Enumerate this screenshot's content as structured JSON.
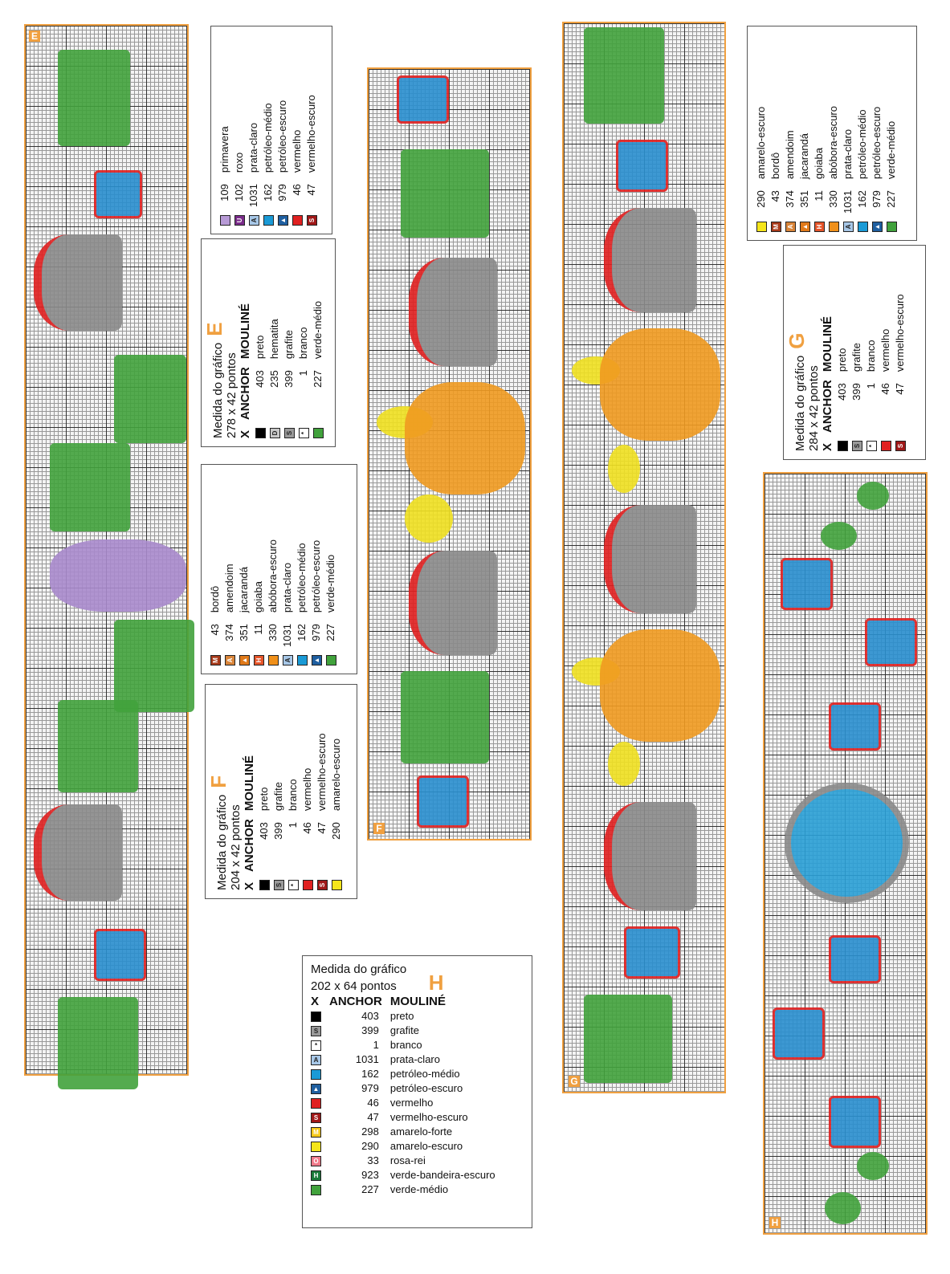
{
  "charts": {
    "E": {
      "label": "E"
    },
    "F": {
      "label": "F"
    },
    "G": {
      "label": "G"
    },
    "H": {
      "label": "H"
    }
  },
  "colors": {
    "preto": "#000000",
    "grafite": "#9a9a9a",
    "branco": "#ffffff",
    "hematita": "#c8c8c8",
    "verde_medio": "#41a23c",
    "primavera": "#b79ad6",
    "roxo": "#7a2c8a",
    "prata_claro": "#a7c7e7",
    "petroleo_medio": "#1a9ad6",
    "petroleo_escuro": "#1f5fa0",
    "vermelho": "#e02020",
    "vermelho_escuro": "#a01818",
    "amarelo_escuro": "#f5e51a",
    "amarelo_forte": "#f5c81a",
    "bordo": "#a83a1a",
    "amendoim": "#d9853a",
    "jacaranda": "#e07a1a",
    "goiaba": "#e6552a",
    "abobora_escuro": "#f0901a",
    "rosa_rei": "#f07a8a",
    "verde_bandeira_escuro": "#1a7a3a"
  },
  "legends": {
    "E_main": {
      "title1": "Medida do gráfico",
      "letter": "E",
      "title2": "278 x 42 pontos",
      "head": [
        "X",
        "ANCHOR",
        "MOULINÉ"
      ],
      "rows": [
        {
          "sym": "",
          "color": "#000000",
          "num": "403",
          "name": "preto"
        },
        {
          "sym": "D",
          "color": "#c8c8c8",
          "num": "235",
          "name": "hematita"
        },
        {
          "sym": "S",
          "color": "#9a9a9a",
          "num": "399",
          "name": "grafite"
        },
        {
          "sym": "*",
          "color": "#ffffff",
          "num": "1",
          "name": "branco"
        },
        {
          "sym": "",
          "color": "#41a23c",
          "num": "227",
          "name": "verde-médio"
        }
      ]
    },
    "E_extra": {
      "rows": [
        {
          "sym": "",
          "color": "#b79ad6",
          "num": "109",
          "name": "primavera"
        },
        {
          "sym": "U",
          "color": "#7a2c8a",
          "num": "102",
          "name": "roxo"
        },
        {
          "sym": "A",
          "color": "#a7c7e7",
          "num": "1031",
          "name": "prata-claro"
        },
        {
          "sym": "",
          "color": "#1a9ad6",
          "num": "162",
          "name": "petróleo-médio"
        },
        {
          "sym": "▲",
          "color": "#1f5fa0",
          "num": "979",
          "name": "petróleo-escuro"
        },
        {
          "sym": "",
          "color": "#e02020",
          "num": "46",
          "name": "vermelho"
        },
        {
          "sym": "S",
          "color": "#a01818",
          "num": "47",
          "name": "vermelho-escuro"
        }
      ]
    },
    "F_extra": {
      "rows": [
        {
          "sym": "M",
          "color": "#a83a1a",
          "num": "43",
          "name": "bordô"
        },
        {
          "sym": "A",
          "color": "#d9853a",
          "num": "374",
          "name": "amendoim"
        },
        {
          "sym": "▲",
          "color": "#e07a1a",
          "num": "351",
          "name": "jacarandá"
        },
        {
          "sym": "H",
          "color": "#e6552a",
          "num": "11",
          "name": "goiaba"
        },
        {
          "sym": "",
          "color": "#f0901a",
          "num": "330",
          "name": "abóbora-escuro"
        },
        {
          "sym": "A",
          "color": "#a7c7e7",
          "num": "1031",
          "name": "prata-claro"
        },
        {
          "sym": "",
          "color": "#1a9ad6",
          "num": "162",
          "name": "petróleo-médio"
        },
        {
          "sym": "▲",
          "color": "#1f5fa0",
          "num": "979",
          "name": "petróleo-escuro"
        },
        {
          "sym": "",
          "color": "#41a23c",
          "num": "227",
          "name": "verde-médio"
        }
      ]
    },
    "F_main": {
      "title1": "Medida do gráfico",
      "letter": "F",
      "title2": "204 x 42 pontos",
      "head": [
        "X",
        "ANCHOR",
        "MOULINÉ"
      ],
      "rows": [
        {
          "sym": "",
          "color": "#000000",
          "num": "403",
          "name": "preto"
        },
        {
          "sym": "S",
          "color": "#9a9a9a",
          "num": "399",
          "name": "grafite"
        },
        {
          "sym": "*",
          "color": "#ffffff",
          "num": "1",
          "name": "branco"
        },
        {
          "sym": "",
          "color": "#e02020",
          "num": "46",
          "name": "vermelho"
        },
        {
          "sym": "S",
          "color": "#a01818",
          "num": "47",
          "name": "vermelho-escuro"
        },
        {
          "sym": "",
          "color": "#f5e51a",
          "num": "290",
          "name": "amarelo-escuro"
        }
      ]
    },
    "G_extra": {
      "rows": [
        {
          "sym": "",
          "color": "#f5e51a",
          "num": "290",
          "name": "amarelo-escuro"
        },
        {
          "sym": "M",
          "color": "#a83a1a",
          "num": "43",
          "name": "bordô"
        },
        {
          "sym": "A",
          "color": "#d9853a",
          "num": "374",
          "name": "amendoim"
        },
        {
          "sym": "▲",
          "color": "#e07a1a",
          "num": "351",
          "name": "jacarandá"
        },
        {
          "sym": "H",
          "color": "#e6552a",
          "num": "11",
          "name": "goiaba"
        },
        {
          "sym": "",
          "color": "#f0901a",
          "num": "330",
          "name": "abóbora-escuro"
        },
        {
          "sym": "A",
          "color": "#a7c7e7",
          "num": "1031",
          "name": "prata-claro"
        },
        {
          "sym": "",
          "color": "#1a9ad6",
          "num": "162",
          "name": "petróleo-médio"
        },
        {
          "sym": "▲",
          "color": "#1f5fa0",
          "num": "979",
          "name": "petróleo-escuro"
        },
        {
          "sym": "",
          "color": "#41a23c",
          "num": "227",
          "name": "verde-médio"
        }
      ]
    },
    "G_main": {
      "title1": "Medida do gráfico",
      "letter": "G",
      "title2": "284 x 42 pontos",
      "head": [
        "X",
        "ANCHOR",
        "MOULINÉ"
      ],
      "rows": [
        {
          "sym": "",
          "color": "#000000",
          "num": "403",
          "name": "preto"
        },
        {
          "sym": "S",
          "color": "#9a9a9a",
          "num": "399",
          "name": "grafite"
        },
        {
          "sym": "*",
          "color": "#ffffff",
          "num": "1",
          "name": "branco"
        },
        {
          "sym": "",
          "color": "#e02020",
          "num": "46",
          "name": "vermelho"
        },
        {
          "sym": "S",
          "color": "#a01818",
          "num": "47",
          "name": "vermelho-escuro"
        }
      ]
    },
    "H_main": {
      "title1": "Medida do gráfico",
      "letter": "H",
      "title2": "202 x 64 pontos",
      "head": [
        "X",
        "ANCHOR",
        "MOULINÉ"
      ],
      "rows": [
        {
          "sym": "",
          "color": "#000000",
          "num": "403",
          "name": "preto"
        },
        {
          "sym": "S",
          "color": "#9a9a9a",
          "num": "399",
          "name": "grafite"
        },
        {
          "sym": "*",
          "color": "#ffffff",
          "num": "1",
          "name": "branco"
        },
        {
          "sym": "A",
          "color": "#a7c7e7",
          "num": "1031",
          "name": "prata-claro"
        },
        {
          "sym": "",
          "color": "#1a9ad6",
          "num": "162",
          "name": "petróleo-médio"
        },
        {
          "sym": "▲",
          "color": "#1f5fa0",
          "num": "979",
          "name": "petróleo-escuro"
        },
        {
          "sym": "",
          "color": "#e02020",
          "num": "46",
          "name": "vermelho"
        },
        {
          "sym": "S",
          "color": "#a01818",
          "num": "47",
          "name": "vermelho-escuro"
        },
        {
          "sym": "M",
          "color": "#f5c81a",
          "num": "298",
          "name": "amarelo-forte"
        },
        {
          "sym": "",
          "color": "#f5e51a",
          "num": "290",
          "name": "amarelo-escuro"
        },
        {
          "sym": "O",
          "color": "#f07a8a",
          "num": "33",
          "name": "rosa-rei"
        },
        {
          "sym": "H",
          "color": "#1a7a3a",
          "num": "923",
          "name": "verde-bandeira-escuro"
        },
        {
          "sym": "",
          "color": "#41a23c",
          "num": "227",
          "name": "verde-médio"
        }
      ]
    }
  }
}
